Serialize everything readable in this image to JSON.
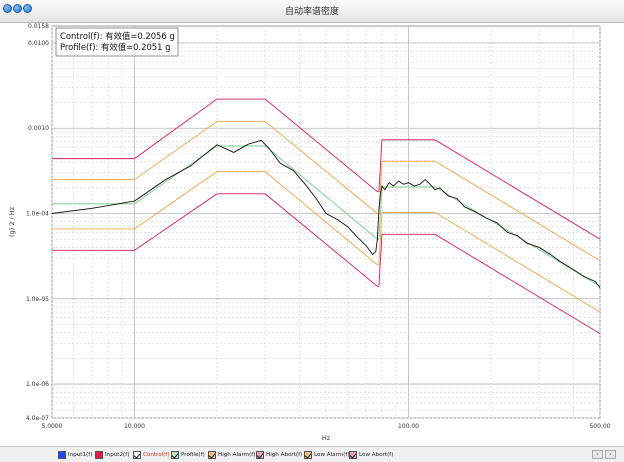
{
  "window": {
    "title": "自动率谱密度"
  },
  "colors": {
    "control": "#111111",
    "profile": "#8fd3a0",
    "high_alarm": "#f4a64a",
    "high_abort": "#d81b60",
    "low_alarm": "#f4a64a",
    "low_abort": "#d81b60"
  },
  "chart_data": {
    "type": "line",
    "title": "",
    "xlabel": "Hz",
    "ylabel": "(g) 2 / Hz",
    "x_scale": "log",
    "y_scale": "log",
    "xlim": [
      5,
      500
    ],
    "ylim": [
      4e-07,
      0.0158
    ],
    "x_ticks": [
      {
        "value": 5,
        "label": "5.0000"
      },
      {
        "value": 10,
        "label": "10.000"
      },
      {
        "value": 100,
        "label": "100.00"
      },
      {
        "value": 500,
        "label": "500.00"
      }
    ],
    "y_ticks": [
      {
        "value": 0.0158,
        "label": "0.0158"
      },
      {
        "value": 0.01,
        "label": "0.0100"
      },
      {
        "value": 0.001,
        "label": "0.0010"
      },
      {
        "value": 0.0001,
        "label": "1.0e-04"
      },
      {
        "value": 1e-05,
        "label": "1.0e-05"
      },
      {
        "value": 1e-06,
        "label": "1.0e-06"
      },
      {
        "value": 4e-07,
        "label": "4.0e-07"
      }
    ],
    "grid": true,
    "annotations": [
      "Control(f): 有效值=0.2056 g",
      "Profile(f): 有效值=0.2051 g"
    ],
    "series": [
      {
        "name": "High Abort(f)",
        "x": [
          5,
          10,
          20,
          30,
          77,
          78,
          80,
          125,
          500
        ],
        "y": [
          0.00044,
          0.00044,
          0.0022,
          0.0022,
          0.00018,
          0.00018,
          0.00073,
          0.00073,
          5e-05
        ]
      },
      {
        "name": "High Alarm(f)",
        "x": [
          5,
          10,
          20,
          30,
          77,
          78,
          80,
          125,
          500
        ],
        "y": [
          0.00025,
          0.00025,
          0.0012,
          0.0012,
          0.0001,
          0.0001,
          0.00041,
          0.00041,
          2.8e-05
        ]
      },
      {
        "name": "Profile(f)",
        "x": [
          5,
          10,
          20,
          30,
          77,
          78,
          80,
          125,
          500
        ],
        "y": [
          0.00013,
          0.00013,
          0.00062,
          0.00062,
          5e-05,
          5e-05,
          0.000205,
          0.000205,
          1.4e-05
        ]
      },
      {
        "name": "Low Alarm(f)",
        "x": [
          5,
          10,
          20,
          30,
          77,
          78,
          80,
          125,
          500
        ],
        "y": [
          6.6e-05,
          6.6e-05,
          0.00031,
          0.00031,
          2.5e-05,
          2.5e-05,
          0.000103,
          0.000103,
          7e-06
        ]
      },
      {
        "name": "Low Abort(f)",
        "x": [
          5,
          10,
          20,
          30,
          77,
          78,
          80,
          125,
          500
        ],
        "y": [
          3.7e-05,
          3.7e-05,
          0.00017,
          0.00017,
          1.4e-05,
          1.4e-05,
          5.7e-05,
          5.7e-05,
          3.9e-06
        ]
      },
      {
        "name": "Control(f)",
        "x": [
          5,
          7,
          10,
          13,
          16,
          20,
          23,
          26,
          29,
          31,
          34,
          38,
          42,
          46,
          50,
          55,
          60,
          65,
          70,
          74,
          76,
          77,
          78,
          79,
          80,
          82,
          85,
          88,
          92,
          96,
          100,
          105,
          110,
          115,
          120,
          125,
          130,
          140,
          150,
          160,
          175,
          190,
          210,
          230,
          250,
          270,
          300,
          330,
          360,
          400,
          440,
          480,
          500
        ],
        "y": [
          0.0001,
          0.000115,
          0.00014,
          0.00025,
          0.00036,
          0.00064,
          0.00052,
          0.00065,
          0.00072,
          0.00058,
          0.00039,
          0.00032,
          0.00022,
          0.00015,
          0.0001,
          8.5e-05,
          7e-05,
          5.3e-05,
          4.2e-05,
          3.3e-05,
          3.6e-05,
          5e-05,
          0.00011,
          0.00017,
          0.00021,
          0.00019,
          0.00023,
          0.00021,
          0.00024,
          0.00022,
          0.00023,
          0.00021,
          0.00022,
          0.00025,
          0.00022,
          0.00019,
          0.0002,
          0.00016,
          0.00015,
          0.00012,
          0.000105,
          9e-05,
          7.8e-05,
          6e-05,
          5.5e-05,
          4.5e-05,
          4e-05,
          3.3e-05,
          2.7e-05,
          2.2e-05,
          1.8e-05,
          1.6e-05,
          1.35e-05
        ]
      }
    ]
  },
  "legend": {
    "items": [
      "Input1(f)",
      "Input2(f)",
      "Control(f)",
      "Profile(f)",
      "High Alarm(f)",
      "High Abort(f)",
      "Low Alarm(f)",
      "Low Abort(f)"
    ],
    "colors": [
      "#1e40ff",
      "#e8194c",
      "#ffffff",
      "#b8ecc0",
      "#f7c08a",
      "#e8a0c0",
      "#f7c08a",
      "#e8a0c0"
    ],
    "checked": [
      false,
      false,
      true,
      true,
      true,
      true,
      true,
      true
    ],
    "text_colors": [
      "#222222",
      "#222222",
      "#e0302a",
      "#222222",
      "#222222",
      "#222222",
      "#222222",
      "#222222"
    ]
  },
  "nav": {
    "prev": "‹",
    "next": "›"
  }
}
